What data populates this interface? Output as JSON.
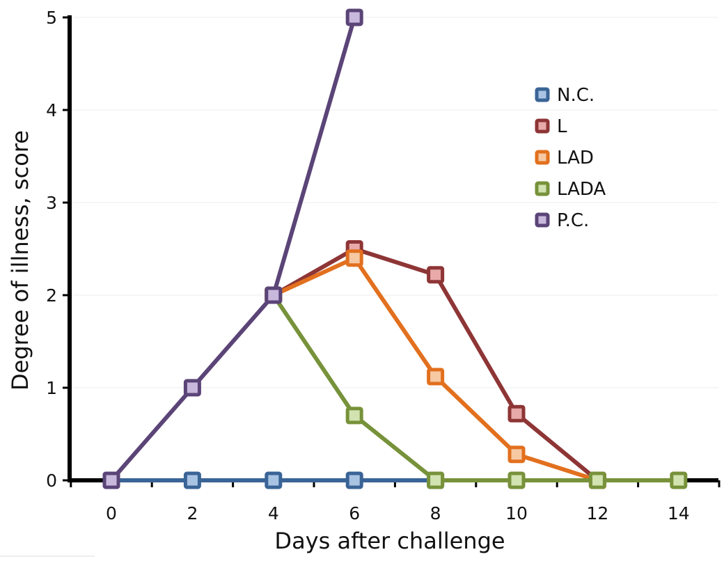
{
  "chart_data": {
    "type": "line",
    "title": "",
    "xlabel": "Days after challenge",
    "ylabel": "Degree of illness, score",
    "xlim": [
      0,
      14
    ],
    "ylim": [
      0,
      5
    ],
    "x_ticks": [
      0,
      2,
      4,
      6,
      8,
      10,
      12,
      14
    ],
    "y_ticks": [
      0,
      1,
      2,
      3,
      4,
      5
    ],
    "grid": "horizontal",
    "legend_position": "top-right",
    "series": [
      {
        "name": "N.C.",
        "color": "#3a6496",
        "marker_fill": "#a9c3e3",
        "x": [
          0,
          2,
          4,
          6,
          8
        ],
        "y": [
          0,
          0,
          0,
          0,
          0
        ]
      },
      {
        "name": "L",
        "color": "#8e3536",
        "marker_fill": "#e8a9a9",
        "x": [
          4,
          6,
          8,
          10,
          12
        ],
        "y": [
          2,
          2.5,
          2.22,
          0.72,
          0
        ]
      },
      {
        "name": "LAD",
        "color": "#e2701e",
        "marker_fill": "#f6c9a3",
        "x": [
          4,
          6,
          8,
          10,
          12
        ],
        "y": [
          2,
          2.4,
          1.12,
          0.28,
          0
        ]
      },
      {
        "name": "LADA",
        "color": "#77923a",
        "marker_fill": "#d2e2b0",
        "x": [
          4,
          6,
          8,
          10,
          12,
          14
        ],
        "y": [
          2,
          0.7,
          0,
          0,
          0,
          0
        ]
      },
      {
        "name": "P.C.",
        "color": "#5b4477",
        "marker_fill": "#c8b8dc",
        "x": [
          0,
          2,
          4,
          6
        ],
        "y": [
          0,
          1,
          2,
          5
        ]
      }
    ]
  }
}
